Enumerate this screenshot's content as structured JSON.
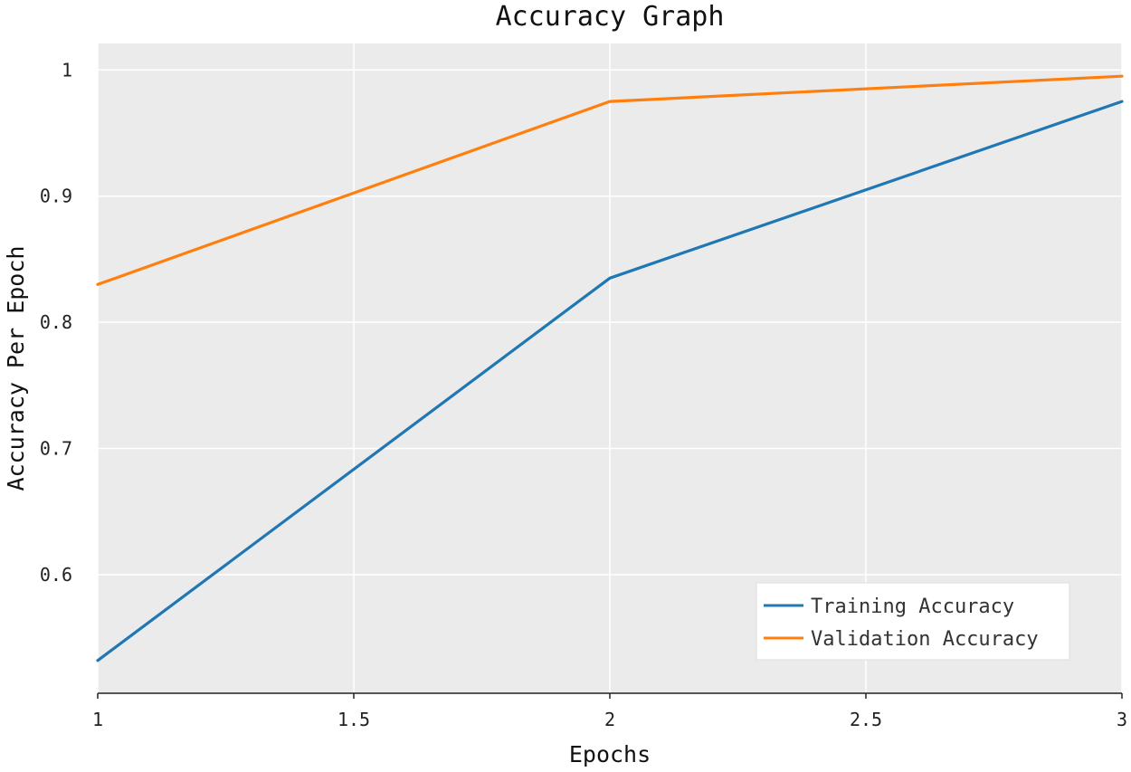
{
  "chart_data": {
    "type": "line",
    "title": "Accuracy Graph",
    "xlabel": "Epochs",
    "ylabel": "Accuracy Per Epoch",
    "x": [
      1,
      2,
      3
    ],
    "xlim": [
      1,
      3
    ],
    "ylim": [
      0.506,
      1.021
    ],
    "xticks": [
      1,
      1.5,
      2,
      2.5,
      3
    ],
    "xtick_labels": [
      "1",
      "1.5",
      "2",
      "2.5",
      "3"
    ],
    "yticks": [
      0.6,
      0.7,
      0.8,
      0.9,
      1.0
    ],
    "ytick_labels": [
      "0.6",
      "0.7",
      "0.8",
      "0.9",
      "1"
    ],
    "grid": true,
    "legend_position": "bottom-right",
    "series": [
      {
        "name": "Training Accuracy",
        "values": [
          0.532,
          0.835,
          0.975
        ],
        "color": "#1f77b4"
      },
      {
        "name": "Validation Accuracy",
        "values": [
          0.83,
          0.975,
          0.995
        ],
        "color": "#ff7f0e"
      }
    ]
  }
}
